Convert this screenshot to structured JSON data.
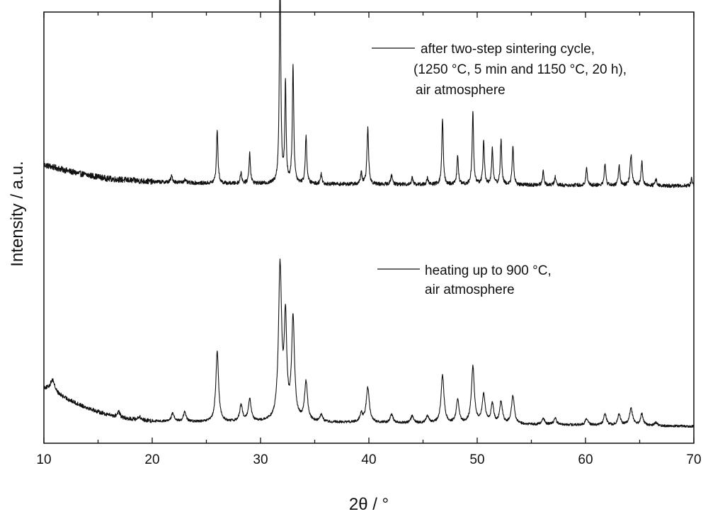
{
  "chart_data": {
    "type": "line",
    "xlabel": "2θ / °",
    "ylabel": "Intensity / a.u.",
    "xlim": [
      10,
      70
    ],
    "y_ticks_shown": false,
    "x_ticks": [
      10,
      20,
      30,
      40,
      50,
      60,
      70
    ],
    "grid": false,
    "series": [
      {
        "legend_lines": [
          "after two-step sintering cycle,",
          "(1250 °C, 5 min and 1150 °C, 20 h),",
          "air atmosphere"
        ],
        "baseline": 0.235,
        "background": [
          [
            10,
            0.34
          ],
          [
            13,
            0.3
          ],
          [
            16,
            0.272
          ],
          [
            20,
            0.258
          ],
          [
            25,
            0.25
          ],
          [
            30,
            0.248
          ],
          [
            70,
            0.238
          ]
        ],
        "noise": 0.009,
        "peaks": [
          {
            "x": 21.8,
            "h": 0.03,
            "w": 0.1
          },
          {
            "x": 23.0,
            "h": 0.015,
            "w": 0.1
          },
          {
            "x": 26.0,
            "h": 0.265,
            "w": 0.08
          },
          {
            "x": 28.2,
            "h": 0.055,
            "w": 0.08
          },
          {
            "x": 29.0,
            "h": 0.15,
            "w": 0.08
          },
          {
            "x": 31.8,
            "h": 1.0,
            "w": 0.08
          },
          {
            "x": 32.3,
            "h": 0.485,
            "w": 0.07
          },
          {
            "x": 33.0,
            "h": 0.57,
            "w": 0.08
          },
          {
            "x": 34.2,
            "h": 0.235,
            "w": 0.08
          },
          {
            "x": 35.6,
            "h": 0.05,
            "w": 0.08
          },
          {
            "x": 39.3,
            "h": 0.055,
            "w": 0.08
          },
          {
            "x": 39.9,
            "h": 0.27,
            "w": 0.09
          },
          {
            "x": 42.1,
            "h": 0.045,
            "w": 0.09
          },
          {
            "x": 44.0,
            "h": 0.035,
            "w": 0.08
          },
          {
            "x": 45.4,
            "h": 0.03,
            "w": 0.08
          },
          {
            "x": 46.8,
            "h": 0.315,
            "w": 0.08
          },
          {
            "x": 48.2,
            "h": 0.14,
            "w": 0.08
          },
          {
            "x": 49.6,
            "h": 0.355,
            "w": 0.08
          },
          {
            "x": 50.6,
            "h": 0.215,
            "w": 0.08
          },
          {
            "x": 51.4,
            "h": 0.175,
            "w": 0.08
          },
          {
            "x": 52.2,
            "h": 0.215,
            "w": 0.08
          },
          {
            "x": 53.3,
            "h": 0.19,
            "w": 0.08
          },
          {
            "x": 56.1,
            "h": 0.07,
            "w": 0.08
          },
          {
            "x": 57.2,
            "h": 0.04,
            "w": 0.08
          },
          {
            "x": 60.1,
            "h": 0.085,
            "w": 0.08
          },
          {
            "x": 61.8,
            "h": 0.105,
            "w": 0.08
          },
          {
            "x": 63.1,
            "h": 0.1,
            "w": 0.08
          },
          {
            "x": 64.2,
            "h": 0.145,
            "w": 0.1
          },
          {
            "x": 65.2,
            "h": 0.115,
            "w": 0.08
          },
          {
            "x": 66.5,
            "h": 0.035,
            "w": 0.08
          },
          {
            "x": 69.8,
            "h": 0.035,
            "w": 0.08
          }
        ]
      },
      {
        "legend_lines": [
          "heating up to 900 °C,",
          "air atmosphere"
        ],
        "baseline": -0.925,
        "background": [
          [
            10,
            -0.74
          ],
          [
            11,
            -0.765
          ],
          [
            13,
            -0.815
          ],
          [
            15,
            -0.855
          ],
          [
            17,
            -0.885
          ],
          [
            20,
            -0.9
          ],
          [
            25,
            -0.905
          ],
          [
            30,
            -0.905
          ],
          [
            40,
            -0.908
          ],
          [
            70,
            -0.925
          ]
        ],
        "noise": 0.006,
        "peaks": [
          {
            "x": 10.8,
            "h": 0.06,
            "w": 0.25
          },
          {
            "x": 16.9,
            "h": 0.03,
            "w": 0.15
          },
          {
            "x": 18.8,
            "h": 0.015,
            "w": 0.15
          },
          {
            "x": 21.9,
            "h": 0.04,
            "w": 0.15
          },
          {
            "x": 23.0,
            "h": 0.045,
            "w": 0.15
          },
          {
            "x": 26.0,
            "h": 0.34,
            "w": 0.15
          },
          {
            "x": 28.2,
            "h": 0.08,
            "w": 0.15
          },
          {
            "x": 29.0,
            "h": 0.11,
            "w": 0.15
          },
          {
            "x": 31.8,
            "h": 0.74,
            "w": 0.17
          },
          {
            "x": 32.3,
            "h": 0.47,
            "w": 0.14
          },
          {
            "x": 33.0,
            "h": 0.49,
            "w": 0.16
          },
          {
            "x": 34.2,
            "h": 0.19,
            "w": 0.16
          },
          {
            "x": 35.6,
            "h": 0.035,
            "w": 0.15
          },
          {
            "x": 39.3,
            "h": 0.04,
            "w": 0.15
          },
          {
            "x": 39.9,
            "h": 0.17,
            "w": 0.17
          },
          {
            "x": 42.1,
            "h": 0.04,
            "w": 0.16
          },
          {
            "x": 44.0,
            "h": 0.035,
            "w": 0.15
          },
          {
            "x": 45.4,
            "h": 0.035,
            "w": 0.15
          },
          {
            "x": 46.8,
            "h": 0.23,
            "w": 0.16
          },
          {
            "x": 48.2,
            "h": 0.11,
            "w": 0.15
          },
          {
            "x": 49.6,
            "h": 0.275,
            "w": 0.16
          },
          {
            "x": 50.6,
            "h": 0.14,
            "w": 0.16
          },
          {
            "x": 51.4,
            "h": 0.095,
            "w": 0.15
          },
          {
            "x": 52.2,
            "h": 0.105,
            "w": 0.15
          },
          {
            "x": 53.3,
            "h": 0.135,
            "w": 0.16
          },
          {
            "x": 56.1,
            "h": 0.03,
            "w": 0.15
          },
          {
            "x": 57.2,
            "h": 0.03,
            "w": 0.15
          },
          {
            "x": 60.1,
            "h": 0.03,
            "w": 0.15
          },
          {
            "x": 61.8,
            "h": 0.055,
            "w": 0.15
          },
          {
            "x": 63.1,
            "h": 0.055,
            "w": 0.15
          },
          {
            "x": 64.2,
            "h": 0.08,
            "w": 0.18
          },
          {
            "x": 65.2,
            "h": 0.055,
            "w": 0.15
          },
          {
            "x": 66.5,
            "h": 0.015,
            "w": 0.15
          }
        ]
      }
    ]
  },
  "colors": {
    "line": "#111111",
    "axis": "#111111",
    "background": "#ffffff"
  }
}
